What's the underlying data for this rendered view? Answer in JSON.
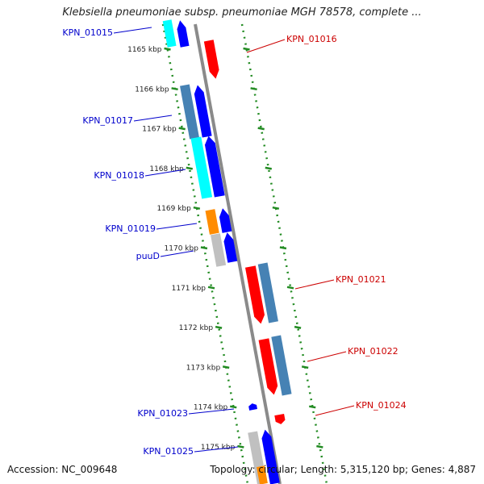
{
  "title": "Klebsiella pneumoniae subsp. pneumoniae MGH 78578, complete ...",
  "accession_label": "Accession: NC_009648",
  "topology_label": "Topology: circular; Length: 5,315,120 bp; Genes: 4,887",
  "colors": {
    "backbone": "#8a8a8a",
    "ruler": "#228b22",
    "left_label": "#0000cc",
    "right_label": "#cc0000",
    "red": "#ff0000",
    "steelblue": "#4682b4",
    "blue": "#0000ff",
    "cyan": "#00ffff",
    "orange": "#ff8c00",
    "gray": "#c0c0c0"
  },
  "ticks": [
    {
      "label": "1165 kbp"
    },
    {
      "label": "1166 kbp"
    },
    {
      "label": "1167 kbp"
    },
    {
      "label": "1168 kbp"
    },
    {
      "label": "1169 kbp"
    },
    {
      "label": "1170 kbp"
    },
    {
      "label": "1171 kbp"
    },
    {
      "label": "1172 kbp"
    },
    {
      "label": "1173 kbp"
    },
    {
      "label": "1174 kbp"
    },
    {
      "label": "1175 kbp"
    }
  ],
  "gene_labels": [
    {
      "text": "KPN_01015",
      "side": "left"
    },
    {
      "text": "KPN_01016",
      "side": "right"
    },
    {
      "text": "KPN_01017",
      "side": "left"
    },
    {
      "text": "KPN_01018",
      "side": "left"
    },
    {
      "text": "KPN_01019",
      "side": "left"
    },
    {
      "text": "puuD",
      "side": "left"
    },
    {
      "text": "KPN_01021",
      "side": "right"
    },
    {
      "text": "KPN_01022",
      "side": "right"
    },
    {
      "text": "KPN_01023",
      "side": "left"
    },
    {
      "text": "KPN_01024",
      "side": "right"
    },
    {
      "text": "KPN_01025",
      "side": "left"
    }
  ]
}
